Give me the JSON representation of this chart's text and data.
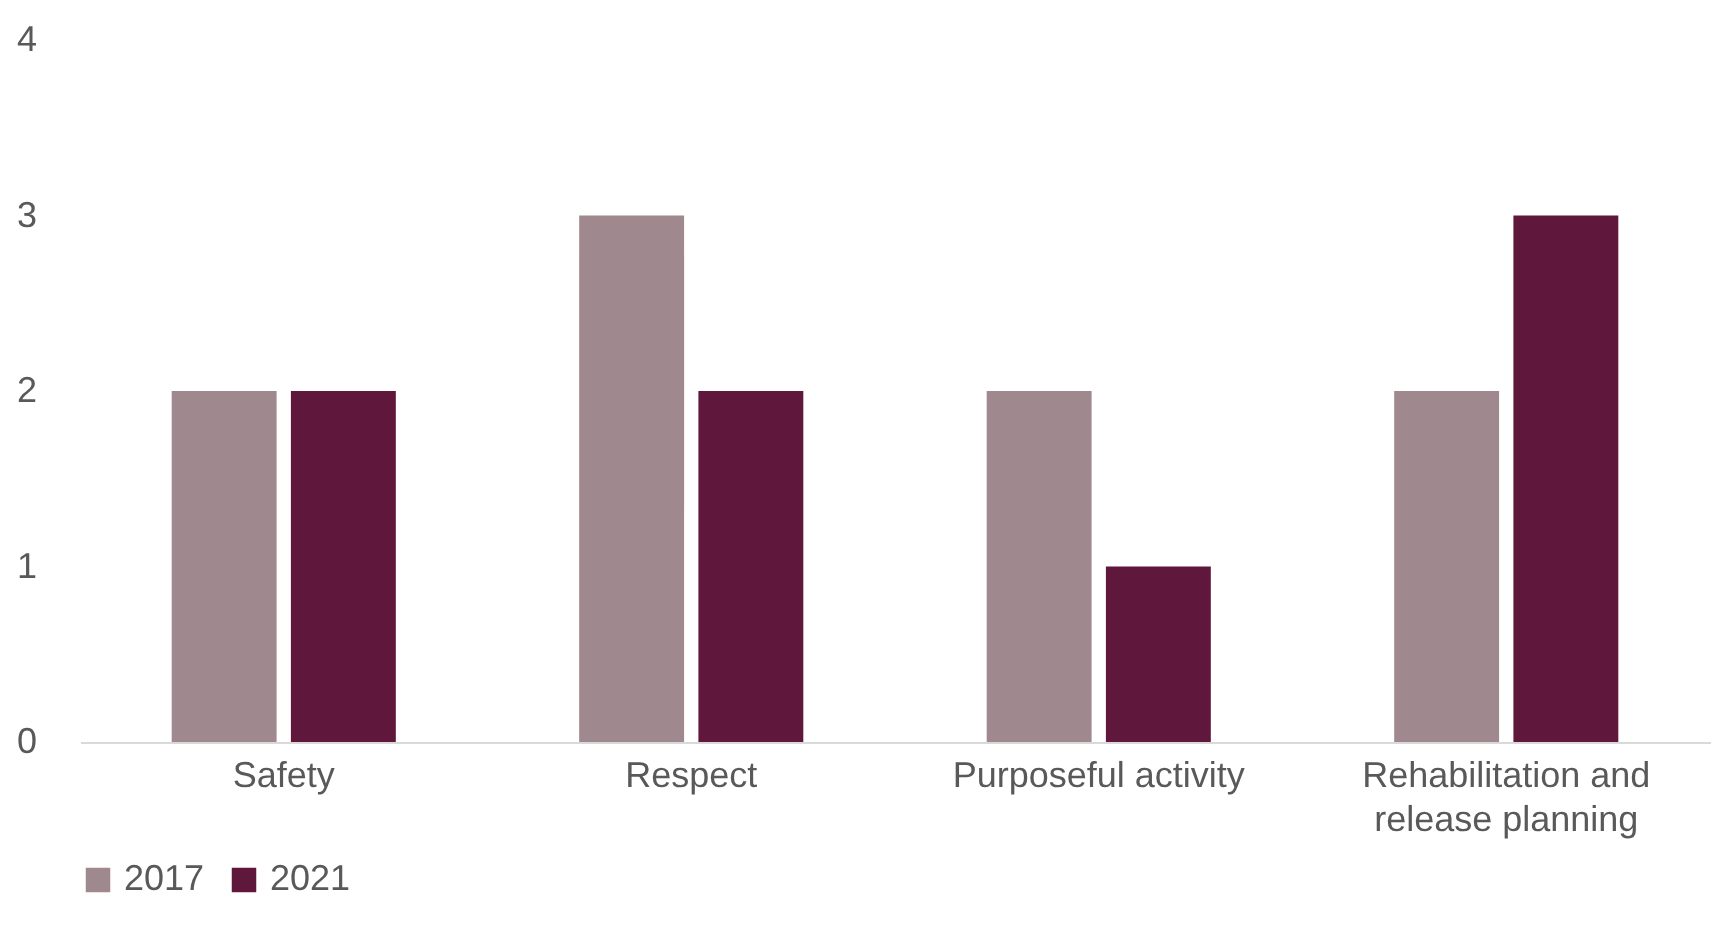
{
  "chart_data": {
    "type": "bar",
    "categories": [
      "Safety",
      "Respect",
      "Purposeful activity",
      "Rehabilitation and release planning"
    ],
    "series": [
      {
        "name": "2017",
        "color": "#a0888f",
        "values": [
          2,
          3,
          2,
          2
        ]
      },
      {
        "name": "2021",
        "color": "#5f173b",
        "values": [
          2,
          2,
          1,
          3
        ]
      }
    ],
    "ylim": [
      0,
      4
    ],
    "yticks": [
      0,
      1,
      2,
      3,
      4
    ],
    "grid": false,
    "legend": "bottom"
  }
}
